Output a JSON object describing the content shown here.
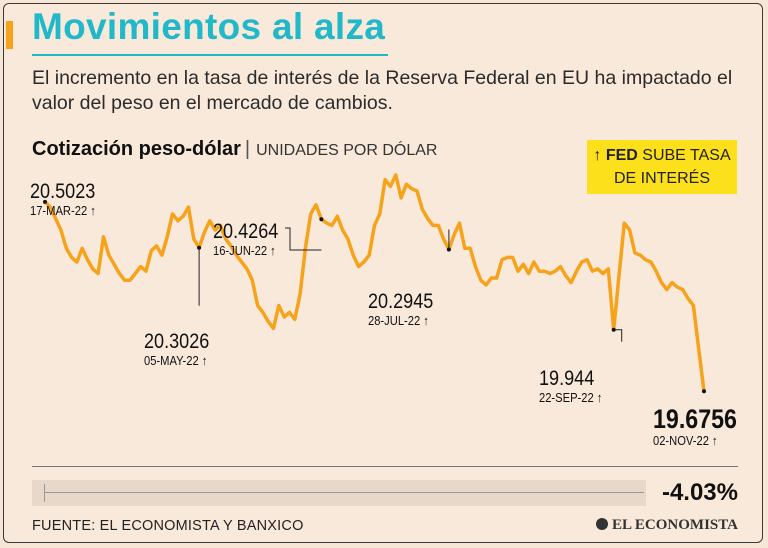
{
  "header": {
    "title": "Movimientos al alza",
    "subtitle": "El incremento en la tasa de interés de la Reserva Federal en EU ha impactado el valor del peso en el mercado de cambios."
  },
  "chart_heading": {
    "title": "Cotización peso-dólar",
    "separator": "|",
    "units": "UNIDADES POR DÓLAR"
  },
  "legend": {
    "arrow": "↑",
    "bold": "FED",
    "text": "SUBE TASA DE INTERÉS"
  },
  "footer": {
    "change": "-4.03%",
    "source": "FUENTE: EL ECONOMISTA Y BANXICO",
    "brand": "EL ECONOMISTA"
  },
  "colors": {
    "line": "#f7a21b",
    "title": "#21b8c9",
    "legend_bg": "#fde01c",
    "background": "#f9e9da"
  },
  "chart_data": {
    "type": "line",
    "title": "Cotización peso-dólar",
    "ylabel": "UNIDADES POR DÓLAR",
    "x_range": [
      "17-MAR-22",
      "02-NOV-22"
    ],
    "ylim": [
      19.55,
      20.62
    ],
    "series": [
      {
        "name": "Peso-dólar",
        "values": [
          20.5023,
          20.48,
          20.43,
          20.38,
          20.3,
          20.26,
          20.24,
          20.3,
          20.25,
          20.21,
          20.19,
          20.35,
          20.27,
          20.23,
          20.19,
          20.16,
          20.16,
          20.19,
          20.22,
          20.2,
          20.29,
          20.31,
          20.27,
          20.35,
          20.45,
          20.42,
          20.44,
          20.48,
          20.34,
          20.3026,
          20.37,
          20.42,
          20.38,
          20.4,
          20.34,
          20.31,
          20.27,
          20.24,
          20.21,
          20.16,
          20.05,
          20.02,
          19.98,
          19.95,
          20.05,
          20.0,
          20.02,
          19.99,
          20.1,
          20.3,
          20.45,
          20.49,
          20.4264,
          20.41,
          20.4,
          20.44,
          20.38,
          20.34,
          20.27,
          20.22,
          20.24,
          20.27,
          20.4,
          20.45,
          20.6,
          20.57,
          20.62,
          20.52,
          20.58,
          20.56,
          20.55,
          20.47,
          20.43,
          20.4,
          20.4,
          20.34,
          20.2945,
          20.36,
          20.41,
          20.3,
          20.3,
          20.22,
          20.16,
          20.14,
          20.17,
          20.17,
          20.25,
          20.26,
          20.26,
          20.2,
          20.23,
          20.19,
          20.24,
          20.2,
          20.2,
          20.19,
          20.2,
          20.22,
          20.18,
          20.15,
          20.2,
          20.24,
          20.25,
          20.2,
          20.21,
          20.19,
          20.21,
          19.944,
          20.18,
          20.41,
          20.38,
          20.28,
          20.27,
          20.25,
          20.24,
          20.2,
          20.15,
          20.12,
          20.15,
          20.13,
          20.12,
          20.08,
          20.05,
          19.86,
          19.6756
        ]
      }
    ],
    "annotations": [
      {
        "value": "20.5023",
        "date": "17-MAR-22",
        "index": 0
      },
      {
        "value": "20.3026",
        "date": "05-MAY-22",
        "index": 29
      },
      {
        "value": "20.4264",
        "date": "16-JUN-22",
        "index": 52
      },
      {
        "value": "20.2945",
        "date": "28-JUL-22",
        "index": 76
      },
      {
        "value": "19.944",
        "date": "22-SEP-22",
        "index": 107
      },
      {
        "value": "19.6756",
        "date": "02-NOV-22",
        "index": 124
      }
    ],
    "fed_arrow": "↑"
  }
}
